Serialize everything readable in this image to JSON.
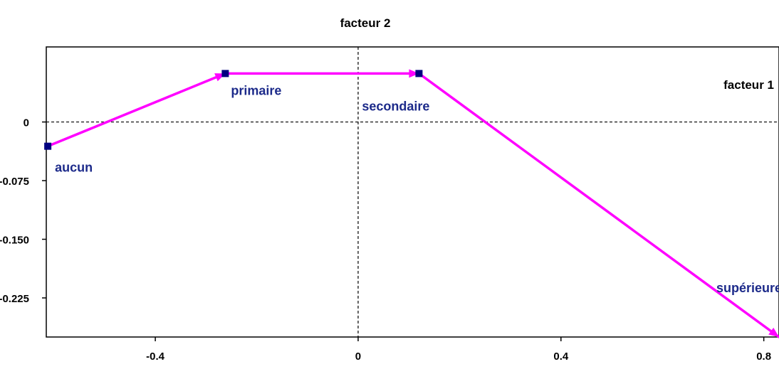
{
  "chart_data": {
    "type": "line",
    "x_axis_name": "facteur 1",
    "y_axis_name": "facteur 2",
    "xlim": [
      -0.615,
      0.83
    ],
    "ylim": [
      -0.275,
      0.096
    ],
    "x_ticks": [
      "-0.4",
      "0",
      "0.4",
      "0.8"
    ],
    "x_tick_values": [
      -0.4,
      0,
      0.4,
      0.8
    ],
    "y_ticks": [
      "0",
      "-0.075",
      "-0.150",
      "-0.225"
    ],
    "y_tick_values": [
      0,
      -0.075,
      -0.15,
      -0.225
    ],
    "series": [
      {
        "points": [
          {
            "label": "aucun",
            "x": -0.612,
            "y": -0.031
          },
          {
            "label": "primaire",
            "x": -0.262,
            "y": 0.062
          },
          {
            "label": "secondaire",
            "x": 0.12,
            "y": 0.062
          },
          {
            "label": "supérieure",
            "x": 0.83,
            "y": -0.275
          }
        ]
      }
    ],
    "colors": {
      "line": "#ff00ff",
      "marker": "#000080",
      "label": "#1c2a8a"
    },
    "grid": false,
    "zero_lines": "dashed"
  }
}
